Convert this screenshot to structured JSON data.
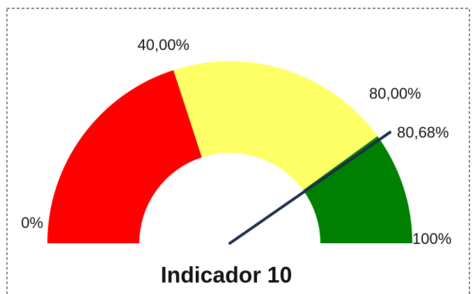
{
  "chart_data": {
    "type": "gauge",
    "title": "Indicador 10",
    "ylim": [
      0,
      100
    ],
    "yticks": [
      {
        "value": 0,
        "label": "0%"
      },
      {
        "value": 40,
        "label": "40,00%"
      },
      {
        "value": 80,
        "label": "80,00%"
      },
      {
        "value": 100,
        "label": "100%"
      }
    ],
    "bands": [
      {
        "color": "#ff0000",
        "value": 40
      },
      {
        "color": "#ffff66",
        "value": 40
      },
      {
        "color": "#008000",
        "value": 20
      }
    ],
    "needle": {
      "color": "#1c2e4a",
      "value": 80.68,
      "value_label": "80,68%"
    }
  }
}
